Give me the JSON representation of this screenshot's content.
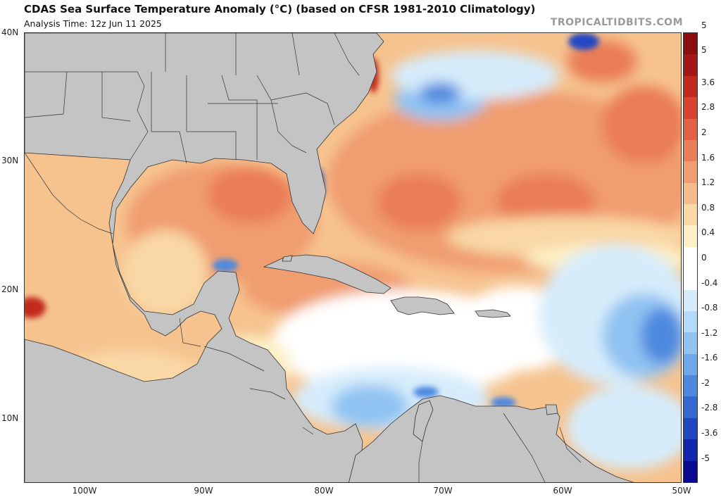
{
  "header": {
    "title": "CDAS Sea Surface Temperature Anomaly (°C) (based on CFSR 1981-2010 Climatology)",
    "analysis_time": "Analysis Time: 12z Jun 11 2025",
    "brand": "TROPICALTIDBITS.COM"
  },
  "axes": {
    "lat_labels": [
      "40N",
      "30N",
      "20N",
      "10N"
    ],
    "lon_labels": [
      "100W",
      "90W",
      "80W",
      "70W",
      "60W",
      "50W"
    ]
  },
  "colorbar": {
    "labels": [
      "5",
      "3.6",
      "2.8",
      "2",
      "1.6",
      "1.2",
      "0.8",
      "0.4",
      "0",
      "-0.4",
      "-0.8",
      "-1.2",
      "-1.6",
      "-2",
      "-2.8",
      "-3.6",
      "-5"
    ],
    "colors": [
      "#8b0d0d",
      "#a51616",
      "#c22a1f",
      "#d8432f",
      "#e26142",
      "#ea7e56",
      "#f09d70",
      "#f5bb8c",
      "#f9d8a6",
      "#fdf0c6",
      "#ffffff",
      "#ffffff",
      "#d6ecfb",
      "#b3dafa",
      "#90c3f2",
      "#6ea8ea",
      "#4d89df",
      "#3469d2",
      "#2047c2",
      "#1226ab",
      "#0a0a90"
    ]
  },
  "map": {
    "colors": {
      "land": "#c4c4c4",
      "ocean_base": "#f6c38f",
      "warm_strong": "#ea7d55",
      "warm": "#f09d70",
      "warm_light": "#f9d8a6",
      "pale": "#fdf0c6",
      "neutral": "#ffffff",
      "cool_light": "#d6ecfb",
      "cool": "#90c3f2",
      "cool_strong": "#4d89df",
      "deep_cool": "#2047c2",
      "hot": "#c22a1f"
    }
  }
}
